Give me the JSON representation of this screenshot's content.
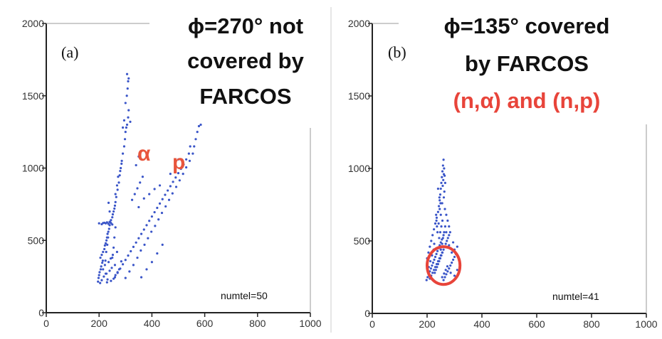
{
  "chart_data": [
    {
      "type": "scatter",
      "panel_label": "(a)",
      "title_lines": [
        "ϕ=270° not",
        "covered by",
        "FARCOS"
      ],
      "subtitle": "",
      "curve_labels": [
        "α",
        "p"
      ],
      "annotation": "numtel=50",
      "marker_color": "#3a55c8",
      "x_ticks": [
        "0",
        "200",
        "400",
        "600",
        "800",
        "1000"
      ],
      "y_ticks": [
        "0",
        "500",
        "1000",
        "1500",
        "2000"
      ],
      "xlim": [
        0,
        1000
      ],
      "ylim": [
        0,
        2000
      ],
      "grid": false,
      "points": [
        [
          196,
          215
        ],
        [
          198,
          240
        ],
        [
          200,
          260
        ],
        [
          202,
          280
        ],
        [
          204,
          205
        ],
        [
          206,
          300
        ],
        [
          208,
          320
        ],
        [
          210,
          225
        ],
        [
          212,
          345
        ],
        [
          214,
          360
        ],
        [
          205,
          380
        ],
        [
          210,
          400
        ],
        [
          215,
          420
        ],
        [
          220,
          440
        ],
        [
          222,
          465
        ],
        [
          225,
          480
        ],
        [
          228,
          500
        ],
        [
          230,
          520
        ],
        [
          232,
          545
        ],
        [
          235,
          560
        ],
        [
          238,
          580
        ],
        [
          240,
          605
        ],
        [
          242,
          625
        ],
        [
          245,
          640
        ],
        [
          250,
          660
        ],
        [
          252,
          680
        ],
        [
          255,
          700
        ],
        [
          258,
          720
        ],
        [
          260,
          740
        ],
        [
          262,
          765
        ],
        [
          215,
          620
        ],
        [
          220,
          622
        ],
        [
          225,
          618
        ],
        [
          230,
          625
        ],
        [
          235,
          615
        ],
        [
          240,
          628
        ],
        [
          245,
          620
        ],
        [
          250,
          610
        ],
        [
          210,
          612
        ],
        [
          200,
          618
        ],
        [
          218,
          250
        ],
        [
          225,
          270
        ],
        [
          232,
          230
        ],
        [
          240,
          290
        ],
        [
          248,
          310
        ],
        [
          255,
          235
        ],
        [
          262,
          260
        ],
        [
          270,
          280
        ],
        [
          215,
          300
        ],
        [
          222,
          330
        ],
        [
          228,
          270
        ],
        [
          236,
          350
        ],
        [
          244,
          375
        ],
        [
          252,
          400
        ],
        [
          260,
          330
        ],
        [
          268,
          420
        ],
        [
          276,
          300
        ],
        [
          284,
          355
        ],
        [
          230,
          210
        ],
        [
          245,
          220
        ],
        [
          265,
          800
        ],
        [
          270,
          850
        ],
        [
          275,
          900
        ],
        [
          278,
          950
        ],
        [
          282,
          1000
        ],
        [
          286,
          1050
        ],
        [
          290,
          1100
        ],
        [
          295,
          1150
        ],
        [
          298,
          1200
        ],
        [
          300,
          1250
        ],
        [
          303,
          1280
        ],
        [
          306,
          1300
        ],
        [
          310,
          1350
        ],
        [
          312,
          1400
        ],
        [
          300,
          1450
        ],
        [
          305,
          1500
        ],
        [
          308,
          1550
        ],
        [
          310,
          1600
        ],
        [
          306,
          1650
        ],
        [
          312,
          1620
        ],
        [
          290,
          1280
        ],
        [
          295,
          1330
        ],
        [
          318,
          1320
        ],
        [
          262,
          820
        ],
        [
          268,
          880
        ],
        [
          272,
          940
        ],
        [
          280,
          980
        ],
        [
          285,
          1030
        ],
        [
          260,
          245
        ],
        [
          270,
          275
        ],
        [
          280,
          305
        ],
        [
          290,
          335
        ],
        [
          300,
          365
        ],
        [
          310,
          395
        ],
        [
          320,
          425
        ],
        [
          330,
          455
        ],
        [
          340,
          485
        ],
        [
          350,
          515
        ],
        [
          360,
          545
        ],
        [
          370,
          575
        ],
        [
          380,
          605
        ],
        [
          390,
          635
        ],
        [
          400,
          665
        ],
        [
          410,
          695
        ],
        [
          420,
          725
        ],
        [
          430,
          755
        ],
        [
          440,
          785
        ],
        [
          450,
          815
        ],
        [
          460,
          845
        ],
        [
          470,
          875
        ],
        [
          480,
          905
        ],
        [
          490,
          935
        ],
        [
          500,
          965
        ],
        [
          510,
          995
        ],
        [
          520,
          1025
        ],
        [
          530,
          1060
        ],
        [
          540,
          1100
        ],
        [
          545,
          1150
        ],
        [
          300,
          240
        ],
        [
          315,
          285
        ],
        [
          330,
          330
        ],
        [
          345,
          380
        ],
        [
          358,
          430
        ],
        [
          372,
          470
        ],
        [
          385,
          515
        ],
        [
          398,
          560
        ],
        [
          412,
          600
        ],
        [
          425,
          645
        ],
        [
          438,
          690
        ],
        [
          452,
          735
        ],
        [
          465,
          780
        ],
        [
          478,
          825
        ],
        [
          492,
          870
        ],
        [
          505,
          915
        ],
        [
          518,
          960
        ],
        [
          530,
          1005
        ],
        [
          543,
          1050
        ],
        [
          555,
          1100
        ],
        [
          560,
          1150
        ],
        [
          566,
          1200
        ],
        [
          572,
          1250
        ],
        [
          578,
          1290
        ],
        [
          585,
          1300
        ],
        [
          350,
          730
        ],
        [
          370,
          790
        ],
        [
          390,
          820
        ],
        [
          410,
          855
        ],
        [
          430,
          880
        ],
        [
          360,
          245
        ],
        [
          380,
          300
        ],
        [
          400,
          350
        ],
        [
          420,
          410
        ],
        [
          440,
          470
        ],
        [
          325,
          780
        ],
        [
          335,
          820
        ],
        [
          345,
          860
        ],
        [
          355,
          900
        ],
        [
          365,
          940
        ],
        [
          340,
          1020
        ],
        [
          350,
          1080
        ],
        [
          470,
          960
        ],
        [
          490,
          1000
        ],
        [
          500,
          1060
        ],
        [
          250,
          380
        ],
        [
          255,
          450
        ],
        [
          258,
          520
        ],
        [
          262,
          590
        ],
        [
          240,
          700
        ],
        [
          236,
          760
        ],
        [
          234,
          520
        ],
        [
          231,
          470
        ],
        [
          227,
          420
        ],
        [
          224,
          360
        ]
      ]
    },
    {
      "type": "scatter",
      "panel_label": "(b)",
      "title_lines": [
        "ϕ=135° covered",
        "by FARCOS"
      ],
      "subtitle": "(n,α) and (n,p)",
      "annotation": "numtel=41",
      "marker_color": "#3a55c8",
      "highlight": {
        "shape": "ellipse",
        "color": "#e8443a",
        "center": [
          260,
          330
        ],
        "radii": [
          60,
          130
        ]
      },
      "x_ticks": [
        "0",
        "200",
        "400",
        "600",
        "800",
        "1000"
      ],
      "y_ticks": [
        "0",
        "500",
        "1000",
        "1500",
        "2000"
      ],
      "xlim": [
        0,
        1000
      ],
      "ylim": [
        0,
        2000
      ],
      "grid": false,
      "points": [
        [
          198,
          230
        ],
        [
          202,
          250
        ],
        [
          206,
          270
        ],
        [
          210,
          290
        ],
        [
          214,
          310
        ],
        [
          218,
          330
        ],
        [
          222,
          350
        ],
        [
          226,
          370
        ],
        [
          230,
          390
        ],
        [
          234,
          410
        ],
        [
          238,
          430
        ],
        [
          242,
          450
        ],
        [
          246,
          470
        ],
        [
          250,
          490
        ],
        [
          254,
          510
        ],
        [
          200,
          380
        ],
        [
          205,
          420
        ],
        [
          210,
          460
        ],
        [
          215,
          500
        ],
        [
          220,
          540
        ],
        [
          225,
          580
        ],
        [
          230,
          620
        ],
        [
          235,
          660
        ],
        [
          240,
          700
        ],
        [
          243,
          740
        ],
        [
          246,
          780
        ],
        [
          248,
          820
        ],
        [
          250,
          860
        ],
        [
          252,
          900
        ],
        [
          254,
          940
        ],
        [
          256,
          980
        ],
        [
          258,
          1020
        ],
        [
          260,
          1060
        ],
        [
          262,
          1000
        ],
        [
          264,
          950
        ],
        [
          266,
          900
        ],
        [
          240,
          860
        ],
        [
          245,
          800
        ],
        [
          255,
          760
        ],
        [
          265,
          720
        ],
        [
          270,
          680
        ],
        [
          275,
          640
        ],
        [
          280,
          600
        ],
        [
          270,
          560
        ],
        [
          260,
          540
        ],
        [
          228,
          280
        ],
        [
          232,
          300
        ],
        [
          236,
          320
        ],
        [
          240,
          340
        ],
        [
          244,
          360
        ],
        [
          248,
          380
        ],
        [
          252,
          400
        ],
        [
          256,
          420
        ],
        [
          260,
          440
        ],
        [
          264,
          460
        ],
        [
          268,
          480
        ],
        [
          272,
          500
        ],
        [
          276,
          520
        ],
        [
          280,
          540
        ],
        [
          284,
          560
        ],
        [
          210,
          240
        ],
        [
          215,
          260
        ],
        [
          220,
          280
        ],
        [
          225,
          300
        ],
        [
          230,
          320
        ],
        [
          235,
          340
        ],
        [
          240,
          360
        ],
        [
          245,
          380
        ],
        [
          250,
          400
        ],
        [
          255,
          420
        ],
        [
          260,
          230
        ],
        [
          265,
          250
        ],
        [
          270,
          270
        ],
        [
          275,
          290
        ],
        [
          280,
          310
        ],
        [
          285,
          330
        ],
        [
          290,
          350
        ],
        [
          295,
          370
        ],
        [
          300,
          390
        ],
        [
          305,
          410
        ],
        [
          290,
          420
        ],
        [
          300,
          440
        ],
        [
          310,
          460
        ],
        [
          280,
          470
        ],
        [
          295,
          490
        ],
        [
          255,
          250
        ],
        [
          262,
          275
        ],
        [
          268,
          300
        ],
        [
          274,
          325
        ],
        [
          286,
          280
        ],
        [
          250,
          440
        ],
        [
          255,
          480
        ],
        [
          258,
          520
        ],
        [
          262,
          560
        ],
        [
          266,
          600
        ],
        [
          238,
          560
        ],
        [
          236,
          600
        ],
        [
          234,
          640
        ],
        [
          233,
          680
        ],
        [
          242,
          620
        ],
        [
          206,
          320
        ],
        [
          212,
          360
        ],
        [
          218,
          400
        ],
        [
          224,
          440
        ],
        [
          226,
          480
        ],
        [
          244,
          520
        ],
        [
          248,
          560
        ],
        [
          252,
          600
        ],
        [
          256,
          640
        ],
        [
          250,
          680
        ],
        [
          246,
          720
        ],
        [
          249,
          760
        ],
        [
          261,
          800
        ],
        [
          263,
          840
        ],
        [
          257,
          880
        ],
        [
          259,
          920
        ],
        [
          261,
          960
        ],
        [
          300,
          260
        ],
        [
          310,
          300
        ],
        [
          320,
          340
        ]
      ]
    }
  ]
}
